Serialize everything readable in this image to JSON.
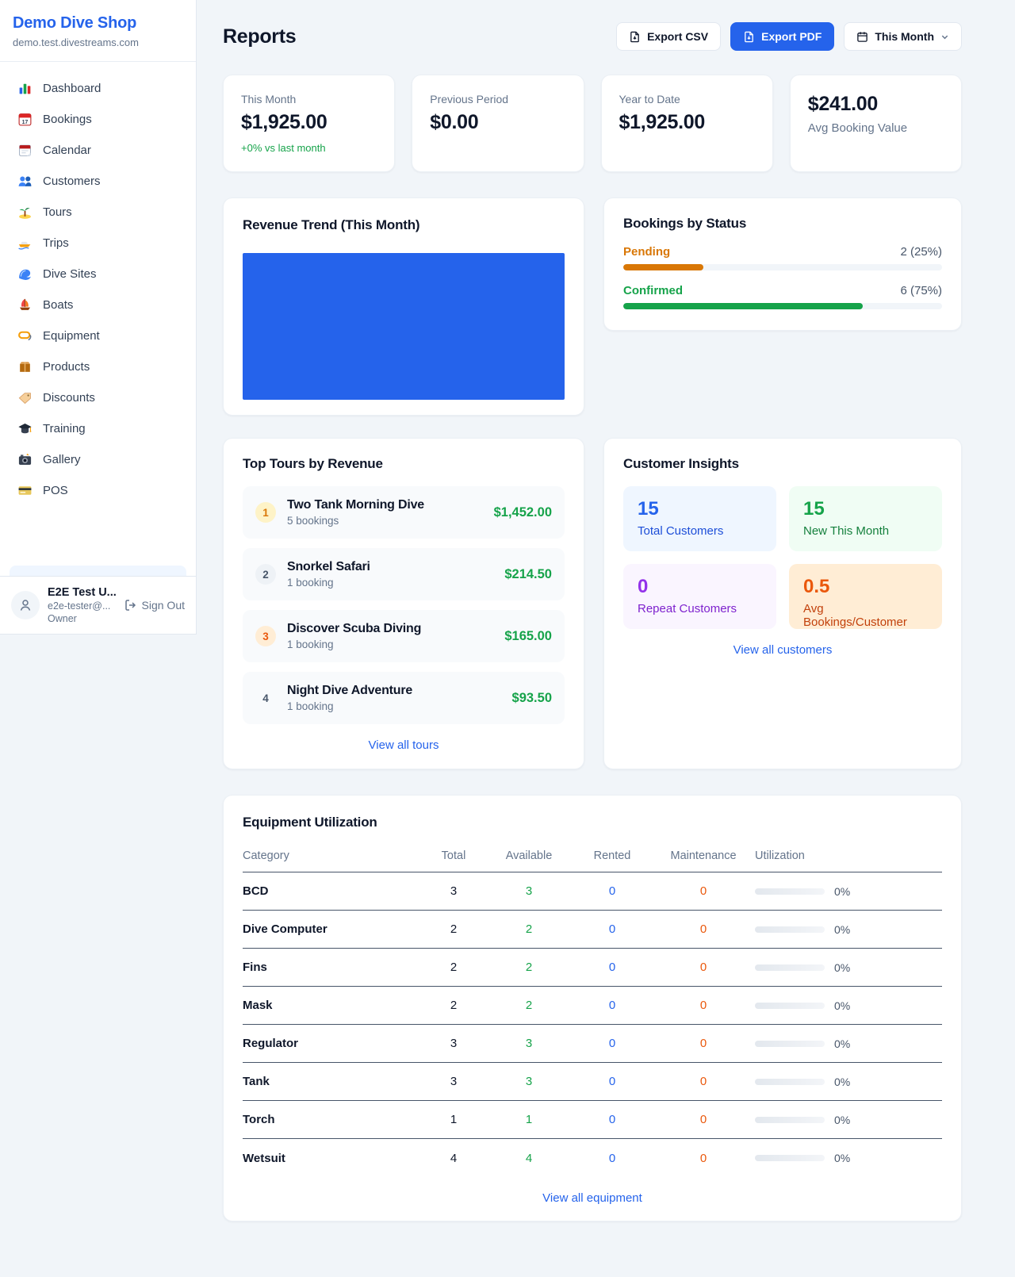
{
  "sidebar": {
    "shop_name": "Demo Dive Shop",
    "domain": "demo.test.divestreams.com",
    "items": [
      {
        "icon": "dashboard",
        "label": "Dashboard"
      },
      {
        "icon": "bookings",
        "label": "Bookings"
      },
      {
        "icon": "calendar",
        "label": "Calendar"
      },
      {
        "icon": "customers",
        "label": "Customers"
      },
      {
        "icon": "tours",
        "label": "Tours"
      },
      {
        "icon": "trips",
        "label": "Trips"
      },
      {
        "icon": "dive-sites",
        "label": "Dive Sites"
      },
      {
        "icon": "boats",
        "label": "Boats"
      },
      {
        "icon": "equipment",
        "label": "Equipment"
      },
      {
        "icon": "products",
        "label": "Products"
      },
      {
        "icon": "discounts",
        "label": "Discounts"
      },
      {
        "icon": "training",
        "label": "Training"
      },
      {
        "icon": "gallery",
        "label": "Gallery"
      },
      {
        "icon": "pos",
        "label": "POS"
      }
    ],
    "user": {
      "name": "E2E Test U...",
      "email": "e2e-tester@...",
      "role": "Owner",
      "sign_out_label": "Sign Out"
    }
  },
  "header": {
    "title": "Reports",
    "export_csv_label": "Export CSV",
    "export_pdf_label": "Export PDF",
    "period_label": "This Month"
  },
  "stats": [
    {
      "label": "This Month",
      "value": "$1,925.00",
      "delta": "+0% vs last month"
    },
    {
      "label": "Previous Period",
      "value": "$0.00"
    },
    {
      "label": "Year to Date",
      "value": "$1,925.00"
    },
    {
      "label": "Avg Booking Value",
      "value": "$241.00",
      "value_first": true
    }
  ],
  "revenue_trend": {
    "title": "Revenue Trend (This Month)",
    "bar_color": "#2563eb"
  },
  "bookings_by_status": {
    "title": "Bookings by Status",
    "rows": [
      {
        "label": "Pending",
        "value": "2 (25%)",
        "percent": 25,
        "color": "#d97706"
      },
      {
        "label": "Confirmed",
        "value": "6 (75%)",
        "percent": 75,
        "color": "#16a34a"
      }
    ]
  },
  "top_tours": {
    "title": "Top Tours by Revenue",
    "link_label": "View all tours",
    "rows": [
      {
        "rank": "1",
        "name": "Two Tank Morning Dive",
        "bookings": "5 bookings",
        "revenue": "$1,452.00",
        "badge_bg": "#fef3c7",
        "badge_color": "#d97706"
      },
      {
        "rank": "2",
        "name": "Snorkel Safari",
        "bookings": "1 booking",
        "revenue": "$214.50",
        "badge_bg": "#eef2f6",
        "badge_color": "#475569"
      },
      {
        "rank": "3",
        "name": "Discover Scuba Diving",
        "bookings": "1 booking",
        "revenue": "$165.00",
        "badge_bg": "#ffedd5",
        "badge_color": "#ea580c"
      },
      {
        "rank": "4",
        "name": "Night Dive Adventure",
        "bookings": "1 booking",
        "revenue": "$93.50",
        "badge_bg": "transparent",
        "badge_color": "#475569"
      }
    ]
  },
  "customer_insights": {
    "title": "Customer Insights",
    "link_label": "View all customers",
    "tiles": [
      {
        "value": "15",
        "label": "Total Customers",
        "bg": "#eff6ff",
        "num_color": "#2563eb",
        "label_color": "#1d4ed8"
      },
      {
        "value": "15",
        "label": "New This Month",
        "bg": "#f0fdf4",
        "num_color": "#16a34a",
        "label_color": "#15803d"
      },
      {
        "value": "0",
        "label": "Repeat Customers",
        "bg": "#faf5ff",
        "num_color": "#9333ea",
        "label_color": "#7e22ce"
      },
      {
        "value": "0.5",
        "label": "Avg Bookings/Customer",
        "bg": "#ffedd5",
        "num_color": "#ea580c",
        "label_color": "#c2410c"
      }
    ]
  },
  "equipment": {
    "title": "Equipment Utilization",
    "link_label": "View all equipment",
    "columns": [
      "Category",
      "Total",
      "Available",
      "Rented",
      "Maintenance",
      "Utilization"
    ],
    "rows": [
      {
        "category": "BCD",
        "total": "3",
        "available": "3",
        "rented": "0",
        "maintenance": "0",
        "utilization": "0%"
      },
      {
        "category": "Dive Computer",
        "total": "2",
        "available": "2",
        "rented": "0",
        "maintenance": "0",
        "utilization": "0%"
      },
      {
        "category": "Fins",
        "total": "2",
        "available": "2",
        "rented": "0",
        "maintenance": "0",
        "utilization": "0%"
      },
      {
        "category": "Mask",
        "total": "2",
        "available": "2",
        "rented": "0",
        "maintenance": "0",
        "utilization": "0%"
      },
      {
        "category": "Regulator",
        "total": "3",
        "available": "3",
        "rented": "0",
        "maintenance": "0",
        "utilization": "0%"
      },
      {
        "category": "Tank",
        "total": "3",
        "available": "3",
        "rented": "0",
        "maintenance": "0",
        "utilization": "0%"
      },
      {
        "category": "Torch",
        "total": "1",
        "available": "1",
        "rented": "0",
        "maintenance": "0",
        "utilization": "0%"
      },
      {
        "category": "Wetsuit",
        "total": "4",
        "available": "4",
        "rented": "0",
        "maintenance": "0",
        "utilization": "0%"
      }
    ]
  },
  "colors": {
    "brand_blue": "#2563eb",
    "green": "#16a34a",
    "amber": "#d97706",
    "orange": "#ea580c",
    "purple": "#9333ea"
  }
}
